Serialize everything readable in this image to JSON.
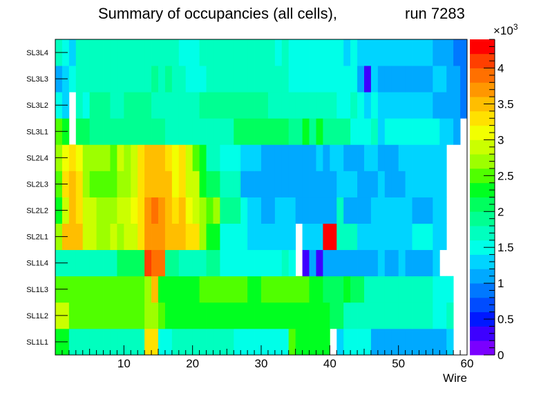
{
  "chart_data": {
    "type": "heatmap",
    "title": "Summary of occupancies (all cells),",
    "title_run": "run 7283",
    "xlabel": "Wire",
    "ylabel": "",
    "x_ticks": [
      "10",
      "20",
      "30",
      "40",
      "50",
      "60"
    ],
    "xlim": [
      0,
      60
    ],
    "y_categories": [
      "SL1L1",
      "SL1L2",
      "SL1L3",
      "SL1L4",
      "SL2L1",
      "SL2L2",
      "SL2L3",
      "SL2L4",
      "SL3L1",
      "SL3L2",
      "SL3L3",
      "SL3L4"
    ],
    "z_range": [
      0,
      4400
    ],
    "colorbar_exponent": "×10",
    "colorbar_exponent_power": "3",
    "colorbar_ticks": [
      "0",
      "0.5",
      "1",
      "1.5",
      "2",
      "2.5",
      "3",
      "3.5",
      "4"
    ],
    "values_note": "occupancy per wire (1..60) for each layer, in counts; null = empty",
    "values": [
      [
        2200,
        2200,
        1700,
        1700,
        1600,
        1600,
        1700,
        1600,
        1700,
        1700,
        1700,
        1700,
        1700,
        3300,
        3300,
        1500,
        1500,
        1700,
        1700,
        1700,
        1700,
        1700,
        1700,
        1600,
        1600,
        1600,
        1400,
        1400,
        1400,
        1400,
        1400,
        1400,
        1400,
        1400,
        2400,
        2200,
        2300,
        2300,
        2300,
        2300,
        null,
        1200,
        1500,
        1500,
        1500,
        1500,
        1100,
        1100,
        1100,
        1100,
        1100,
        1100,
        1100,
        1000,
        1000,
        1000,
        1000,
        1200,
        null,
        null
      ],
      [
        2800,
        2800,
        2500,
        2500,
        2500,
        2500,
        2400,
        2400,
        2500,
        2400,
        2400,
        2400,
        2400,
        2600,
        2700,
        2400,
        2200,
        2200,
        2300,
        2300,
        2300,
        2300,
        2300,
        2300,
        2300,
        2300,
        2300,
        2300,
        2300,
        2300,
        2300,
        2300,
        2300,
        2300,
        2300,
        2300,
        2300,
        2300,
        2200,
        2200,
        2000,
        2000,
        1700,
        1700,
        1700,
        1700,
        1700,
        1700,
        1700,
        1700,
        1700,
        1700,
        1700,
        1700,
        1700,
        1500,
        1500,
        1700,
        null,
        null
      ],
      [
        2400,
        2400,
        2400,
        2400,
        2400,
        2400,
        2400,
        2400,
        2400,
        2400,
        2400,
        2400,
        2400,
        2600,
        3400,
        2200,
        2200,
        2300,
        2300,
        2300,
        2300,
        2400,
        2400,
        2400,
        2400,
        2400,
        2400,
        2400,
        2300,
        2300,
        2400,
        2400,
        2400,
        2400,
        2400,
        2400,
        2400,
        2200,
        2200,
        2000,
        2000,
        2000,
        2200,
        2100,
        2000,
        1700,
        1700,
        1700,
        1700,
        1700,
        1700,
        1700,
        1700,
        1700,
        1700,
        1400,
        1400,
        1500,
        null,
        null
      ],
      [
        1700,
        1700,
        1700,
        1600,
        1700,
        1600,
        1700,
        1700,
        1700,
        2000,
        2000,
        2000,
        2000,
        4100,
        3800,
        3800,
        1800,
        1800,
        1600,
        1600,
        1600,
        1700,
        1800,
        1800,
        1400,
        1400,
        1400,
        1400,
        1400,
        1400,
        1400,
        1400,
        1500,
        1700,
        1400,
        null,
        300,
        1100,
        300,
        1100,
        1100,
        1100,
        1100,
        1100,
        1100,
        1100,
        1100,
        1200,
        1000,
        1000,
        1200,
        1000,
        1000,
        1000,
        1000,
        1200,
        null,
        null,
        null,
        null
      ],
      [
        2600,
        3400,
        3400,
        3400,
        2900,
        2800,
        2700,
        2600,
        2800,
        2700,
        3000,
        3000,
        3200,
        3700,
        3700,
        3700,
        3500,
        3500,
        3400,
        3200,
        3200,
        2700,
        2200,
        2200,
        1500,
        1500,
        1400,
        1400,
        1300,
        1300,
        1300,
        1300,
        1300,
        1300,
        1300,
        null,
        1300,
        1300,
        1300,
        4400,
        4400,
        1700,
        1700,
        1700,
        1200,
        1200,
        1200,
        1200,
        1200,
        1300,
        1300,
        1300,
        1400,
        1400,
        1400,
        1300,
        1300,
        null,
        null,
        null
      ],
      [
        2300,
        3000,
        3400,
        3200,
        2800,
        2800,
        2600,
        2700,
        2700,
        2800,
        2800,
        3100,
        3200,
        3700,
        3800,
        3700,
        3400,
        3200,
        3400,
        3100,
        3000,
        2700,
        2400,
        2600,
        1800,
        1800,
        1800,
        1400,
        1300,
        1300,
        1100,
        1100,
        1300,
        1300,
        1300,
        1000,
        1000,
        1000,
        1000,
        1000,
        1000,
        1600,
        1000,
        1000,
        1000,
        1000,
        1200,
        1200,
        1200,
        1200,
        1200,
        1200,
        1000,
        1000,
        1000,
        1300,
        1200,
        null,
        null,
        null
      ],
      [
        2500,
        3300,
        3400,
        3300,
        2700,
        2400,
        2400,
        2400,
        2500,
        2700,
        2700,
        2900,
        3200,
        3500,
        3500,
        3500,
        3400,
        3100,
        3200,
        2800,
        2800,
        2200,
        2100,
        2100,
        1700,
        1700,
        1700,
        1100,
        1100,
        1100,
        1100,
        1100,
        1100,
        1100,
        1100,
        1100,
        1100,
        1100,
        1100,
        1100,
        1100,
        1200,
        1200,
        1200,
        1100,
        1100,
        1100,
        1200,
        1100,
        1100,
        1100,
        1200,
        1200,
        1200,
        1200,
        1200,
        1200,
        null,
        null,
        null
      ],
      [
        2700,
        3100,
        3200,
        3100,
        2700,
        2600,
        2600,
        2700,
        2500,
        2900,
        2600,
        2900,
        3300,
        3500,
        3500,
        3500,
        3300,
        3100,
        3200,
        2800,
        2500,
        2300,
        1700,
        1700,
        1500,
        1500,
        1500,
        1300,
        1300,
        1300,
        1100,
        1100,
        1100,
        1100,
        1100,
        1100,
        1100,
        1100,
        1200,
        1100,
        1200,
        1200,
        1100,
        1100,
        1100,
        1200,
        1200,
        1100,
        1000,
        1000,
        1200,
        1200,
        1200,
        1200,
        1200,
        1300,
        1200,
        null,
        null,
        null
      ],
      [
        2400,
        2200,
        null,
        2000,
        2000,
        1900,
        1900,
        1900,
        1900,
        1900,
        1900,
        1900,
        1900,
        1900,
        1900,
        1900,
        1700,
        1700,
        1700,
        1700,
        1700,
        1700,
        1700,
        1700,
        1700,
        1700,
        2100,
        2100,
        2100,
        2100,
        2100,
        2100,
        2100,
        2100,
        1800,
        1800,
        2200,
        1800,
        2200,
        1800,
        1800,
        1800,
        1800,
        1500,
        1500,
        1500,
        1700,
        1300,
        1500,
        1500,
        1500,
        1500,
        1500,
        1500,
        1500,
        1500,
        1200,
        1200,
        1000,
        null
      ],
      [
        1400,
        1200,
        null,
        1700,
        1400,
        1900,
        1900,
        1900,
        1700,
        1700,
        1900,
        1900,
        1900,
        1900,
        1700,
        1700,
        1700,
        1700,
        1700,
        1600,
        1600,
        1800,
        1900,
        1900,
        1900,
        1900,
        1900,
        1900,
        1800,
        1800,
        1800,
        1700,
        1700,
        1700,
        1700,
        1700,
        1700,
        1700,
        1700,
        1700,
        1700,
        1400,
        1400,
        1600,
        1400,
        1200,
        1400,
        1200,
        1200,
        1200,
        1200,
        1200,
        1200,
        1200,
        1200,
        1000,
        1000,
        1000,
        1000,
        800
      ],
      [
        1100,
        1200,
        1400,
        1600,
        1600,
        1600,
        1600,
        1600,
        1600,
        1600,
        1600,
        1600,
        1600,
        1600,
        1800,
        1600,
        1800,
        1600,
        1600,
        1400,
        1400,
        1400,
        1600,
        1600,
        1600,
        1600,
        1600,
        1600,
        1600,
        1600,
        1600,
        1600,
        1600,
        1600,
        1500,
        1500,
        1500,
        1500,
        1500,
        1500,
        1500,
        1500,
        1500,
        1500,
        1100,
        200,
        1300,
        1100,
        1100,
        1100,
        1100,
        1100,
        1100,
        1100,
        1100,
        1200,
        1200,
        1100,
        1100,
        900
      ],
      [
        1600,
        1400,
        1200,
        1600,
        1600,
        1600,
        1600,
        1600,
        1600,
        1600,
        1600,
        1600,
        1600,
        1600,
        1600,
        1600,
        1600,
        1600,
        1500,
        1500,
        1500,
        1600,
        1600,
        1600,
        1600,
        1600,
        1600,
        1600,
        1600,
        1600,
        1600,
        1600,
        1500,
        1600,
        1500,
        1500,
        1500,
        1500,
        1500,
        1500,
        1500,
        1500,
        1200,
        1500,
        1300,
        1300,
        1300,
        1300,
        1300,
        1300,
        1300,
        1200,
        1200,
        1200,
        1200,
        1000,
        1000,
        1000,
        900,
        800
      ]
    ]
  }
}
